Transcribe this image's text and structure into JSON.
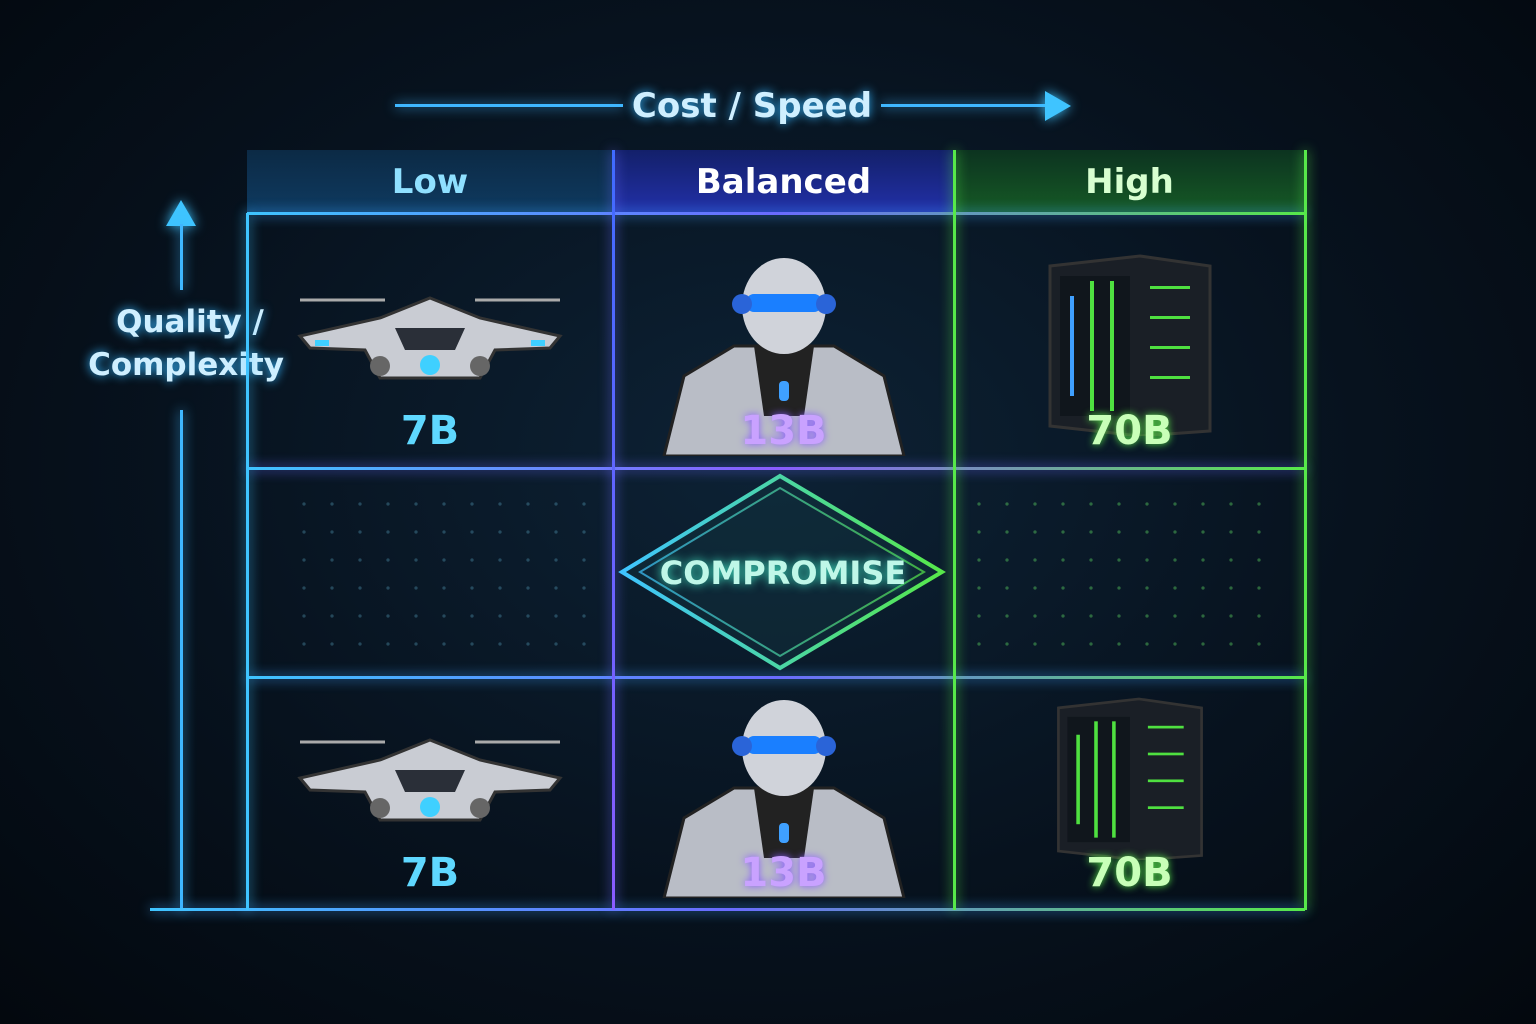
{
  "x_axis": {
    "label": "Cost / Speed",
    "direction": "right"
  },
  "y_axis": {
    "label_line1": "Quality /",
    "label_line2": "Complexity",
    "direction": "up"
  },
  "columns": [
    {
      "label": "Low",
      "color": "#8fe0ff",
      "model": "7B",
      "icon": "drone-icon"
    },
    {
      "label": "Balanced",
      "color": "#ffffff",
      "model": "13B",
      "icon": "robot-icon"
    },
    {
      "label": "High",
      "color": "#d8ffd0",
      "model": "70B",
      "icon": "server-icon"
    }
  ],
  "rows": [
    {
      "cells": [
        "7B",
        "13B",
        "70B"
      ]
    },
    {
      "center_label": "COMPROMISE"
    },
    {
      "cells": [
        "7B",
        "13B",
        "70B"
      ]
    }
  ],
  "colors": {
    "low": "#3fc4ff",
    "balanced": "#8a5cff",
    "high": "#57e84a",
    "compromise": "#3fe0c0"
  }
}
